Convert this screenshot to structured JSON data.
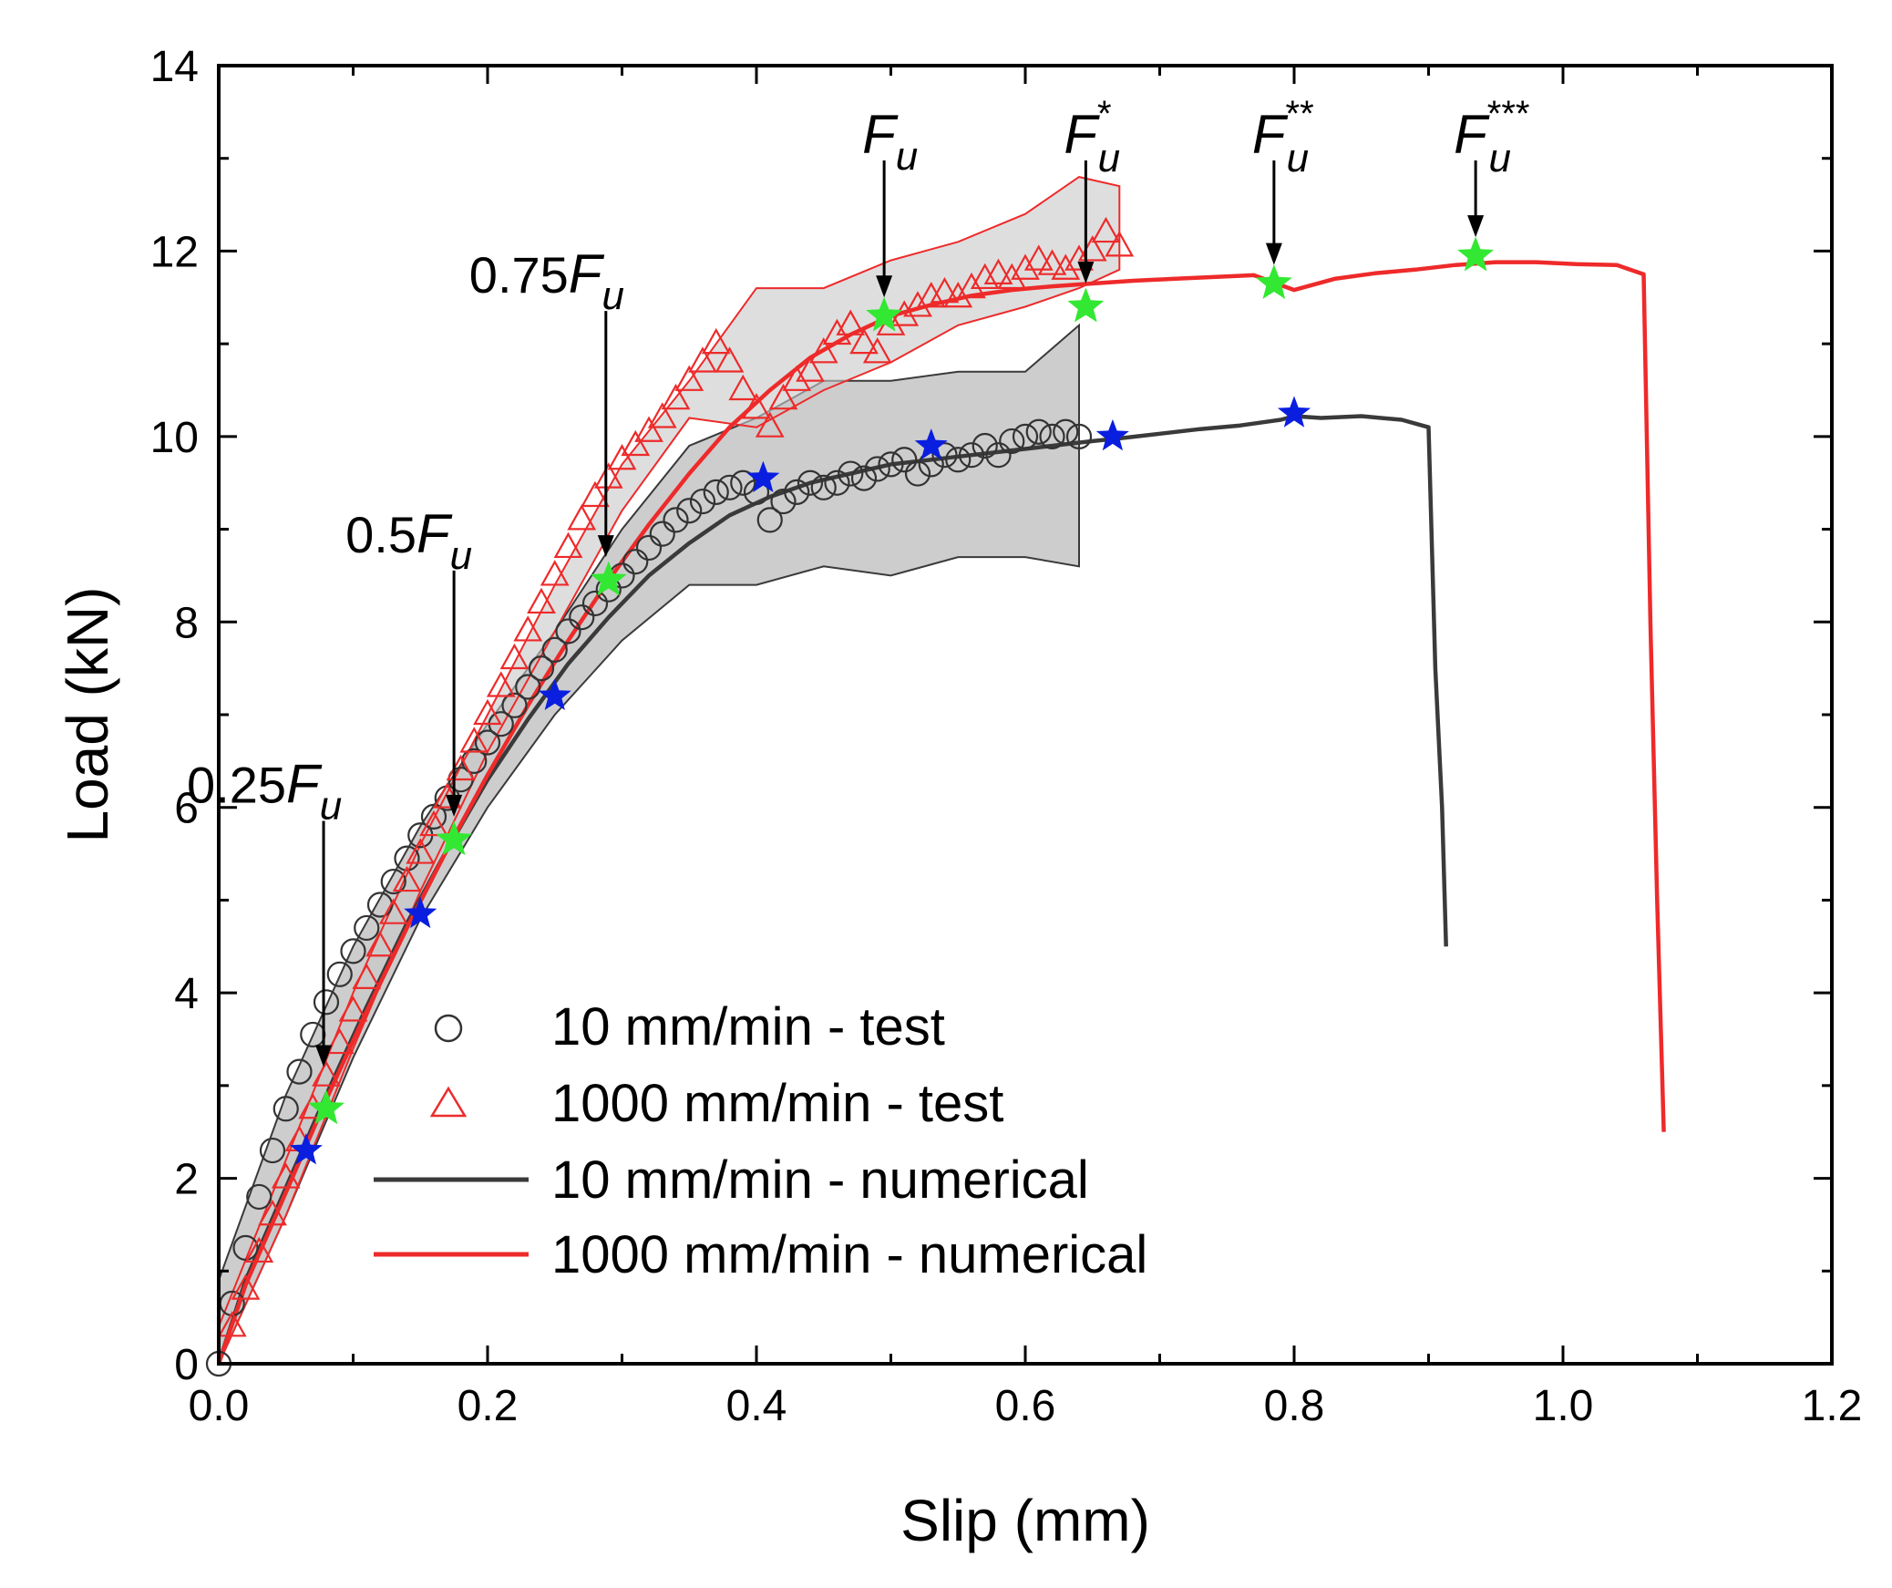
{
  "chart_data": {
    "type": "line",
    "title": "",
    "xlabel": "Slip (mm)",
    "ylabel": "Load (kN)",
    "xlim": [
      0.0,
      1.2
    ],
    "ylim": [
      0,
      14
    ],
    "x_ticks": [
      "0.0",
      "0.2",
      "0.4",
      "0.6",
      "0.8",
      "1.0",
      "1.2"
    ],
    "y_ticks": [
      "0",
      "2",
      "4",
      "6",
      "8",
      "10",
      "12",
      "14"
    ],
    "legend_position": "bottom-left",
    "colors": {
      "black_series": "#3a3a3a",
      "red_series": "#ee2a2a",
      "band_fill": "#c8c8c8",
      "green_star": "#33e833",
      "blue_star": "#0a1ee0"
    },
    "series": [
      {
        "name": "10 mm/min - test",
        "marker": "circle",
        "x": [
          0.0,
          0.01,
          0.02,
          0.03,
          0.04,
          0.05,
          0.06,
          0.07,
          0.08,
          0.09,
          0.1,
          0.11,
          0.12,
          0.13,
          0.14,
          0.15,
          0.16,
          0.17,
          0.18,
          0.19,
          0.2,
          0.21,
          0.22,
          0.23,
          0.24,
          0.25,
          0.26,
          0.27,
          0.28,
          0.29,
          0.3,
          0.31,
          0.32,
          0.33,
          0.34,
          0.35,
          0.36,
          0.37,
          0.38,
          0.39,
          0.4,
          0.41,
          0.42,
          0.43,
          0.44,
          0.45,
          0.46,
          0.47,
          0.48,
          0.49,
          0.5,
          0.51,
          0.52,
          0.53,
          0.54,
          0.55,
          0.56,
          0.57,
          0.58,
          0.59,
          0.6,
          0.61,
          0.62,
          0.63,
          0.64
        ],
        "y": [
          0.0,
          0.65,
          1.25,
          1.8,
          2.3,
          2.75,
          3.15,
          3.55,
          3.9,
          4.2,
          4.45,
          4.7,
          4.95,
          5.2,
          5.45,
          5.7,
          5.9,
          6.1,
          6.3,
          6.5,
          6.7,
          6.9,
          7.1,
          7.3,
          7.5,
          7.7,
          7.9,
          8.05,
          8.2,
          8.35,
          8.5,
          8.65,
          8.8,
          8.95,
          9.1,
          9.2,
          9.3,
          9.4,
          9.45,
          9.5,
          9.4,
          9.1,
          9.3,
          9.4,
          9.5,
          9.45,
          9.5,
          9.6,
          9.55,
          9.65,
          9.7,
          9.75,
          9.6,
          9.7,
          9.8,
          9.75,
          9.8,
          9.9,
          9.8,
          9.95,
          10.0,
          10.05,
          10.0,
          10.05,
          10.0
        ]
      },
      {
        "name": "1000 mm/min - test",
        "marker": "triangle",
        "x": [
          0.01,
          0.02,
          0.03,
          0.04,
          0.05,
          0.06,
          0.07,
          0.08,
          0.09,
          0.1,
          0.11,
          0.12,
          0.13,
          0.14,
          0.15,
          0.16,
          0.17,
          0.18,
          0.19,
          0.2,
          0.21,
          0.22,
          0.23,
          0.24,
          0.25,
          0.26,
          0.27,
          0.28,
          0.29,
          0.3,
          0.31,
          0.32,
          0.33,
          0.34,
          0.35,
          0.36,
          0.37,
          0.38,
          0.39,
          0.4,
          0.41,
          0.42,
          0.43,
          0.44,
          0.45,
          0.46,
          0.47,
          0.48,
          0.49,
          0.5,
          0.51,
          0.52,
          0.53,
          0.54,
          0.55,
          0.56,
          0.57,
          0.58,
          0.59,
          0.6,
          0.61,
          0.62,
          0.63,
          0.64,
          0.65,
          0.66,
          0.67
        ],
        "y": [
          0.4,
          0.8,
          1.2,
          1.6,
          2.0,
          2.4,
          2.75,
          3.1,
          3.45,
          3.8,
          4.15,
          4.5,
          4.85,
          5.2,
          5.5,
          5.8,
          6.1,
          6.4,
          6.7,
          7.0,
          7.3,
          7.6,
          7.9,
          8.2,
          8.5,
          8.8,
          9.1,
          9.35,
          9.55,
          9.75,
          9.9,
          10.05,
          10.2,
          10.4,
          10.6,
          10.8,
          11.0,
          10.8,
          10.5,
          10.3,
          10.1,
          10.4,
          10.6,
          10.7,
          10.9,
          11.1,
          11.2,
          11.0,
          10.9,
          11.2,
          11.3,
          11.4,
          11.5,
          11.55,
          11.5,
          11.6,
          11.7,
          11.75,
          11.7,
          11.8,
          11.9,
          11.85,
          11.8,
          11.9,
          12.0,
          12.2,
          12.05
        ]
      },
      {
        "name": "10 mm/min - numerical",
        "marker": "line",
        "x": [
          0.0,
          0.02,
          0.05,
          0.08,
          0.11,
          0.14,
          0.17,
          0.2,
          0.23,
          0.26,
          0.29,
          0.32,
          0.35,
          0.38,
          0.41,
          0.44,
          0.47,
          0.5,
          0.53,
          0.56,
          0.59,
          0.62,
          0.65,
          0.67,
          0.7,
          0.73,
          0.76,
          0.79,
          0.8,
          0.82,
          0.85,
          0.88,
          0.9,
          0.905,
          0.91,
          0.913
        ],
        "y": [
          0.0,
          0.9,
          1.9,
          2.9,
          3.85,
          4.75,
          5.55,
          6.3,
          6.95,
          7.55,
          8.05,
          8.5,
          8.85,
          9.15,
          9.35,
          9.5,
          9.6,
          9.7,
          9.75,
          9.8,
          9.85,
          9.9,
          9.95,
          9.98,
          10.03,
          10.08,
          10.12,
          10.18,
          10.22,
          10.2,
          10.22,
          10.18,
          10.1,
          7.5,
          6.0,
          4.5
        ]
      },
      {
        "name": "1000 mm/min - numerical",
        "marker": "line",
        "x": [
          0.0,
          0.02,
          0.05,
          0.08,
          0.11,
          0.14,
          0.17,
          0.2,
          0.23,
          0.26,
          0.29,
          0.32,
          0.35,
          0.38,
          0.41,
          0.44,
          0.47,
          0.5,
          0.53,
          0.56,
          0.59,
          0.62,
          0.65,
          0.68,
          0.71,
          0.74,
          0.77,
          0.8,
          0.83,
          0.86,
          0.89,
          0.92,
          0.95,
          0.98,
          1.01,
          1.04,
          1.06,
          1.065,
          1.07,
          1.075
        ],
        "y": [
          0.0,
          0.85,
          1.85,
          2.85,
          3.8,
          4.7,
          5.55,
          6.35,
          7.1,
          7.8,
          8.45,
          9.05,
          9.6,
          10.1,
          10.5,
          10.85,
          11.1,
          11.3,
          11.42,
          11.52,
          11.58,
          11.62,
          11.65,
          11.68,
          11.7,
          11.72,
          11.74,
          11.58,
          11.7,
          11.76,
          11.8,
          11.85,
          11.88,
          11.88,
          11.86,
          11.85,
          11.75,
          8.0,
          5.0,
          2.5
        ]
      }
    ],
    "bands": [
      {
        "name": "10 mm/min - test range",
        "x": [
          0.0,
          0.05,
          0.1,
          0.15,
          0.2,
          0.25,
          0.3,
          0.35,
          0.4,
          0.45,
          0.5,
          0.55,
          0.6,
          0.64
        ],
        "upper": [
          0.9,
          2.9,
          4.5,
          5.8,
          6.9,
          7.9,
          9.0,
          9.9,
          10.2,
          10.6,
          10.6,
          10.7,
          10.7,
          11.2
        ],
        "lower": [
          0.0,
          1.6,
          3.3,
          4.8,
          6.0,
          7.0,
          7.8,
          8.4,
          8.4,
          8.6,
          8.5,
          8.7,
          8.7,
          8.6
        ]
      },
      {
        "name": "1000 mm/min - test range",
        "x": [
          0.0,
          0.05,
          0.1,
          0.15,
          0.2,
          0.25,
          0.3,
          0.35,
          0.4,
          0.45,
          0.5,
          0.55,
          0.6,
          0.64,
          0.67
        ],
        "upper": [
          0.4,
          2.2,
          4.0,
          5.6,
          7.0,
          8.4,
          9.7,
          10.6,
          11.6,
          11.6,
          11.9,
          12.1,
          12.4,
          12.8,
          12.7
        ],
        "lower": [
          0.0,
          1.6,
          3.4,
          5.1,
          6.6,
          7.9,
          9.2,
          10.2,
          10.1,
          10.5,
          10.8,
          11.2,
          11.4,
          11.6,
          11.8
        ]
      }
    ],
    "green_stars": {
      "x": [
        0.08,
        0.175,
        0.29,
        0.495,
        0.645,
        0.785,
        0.935
      ],
      "y": [
        2.75,
        5.65,
        8.45,
        11.3,
        11.4,
        11.65,
        11.95
      ]
    },
    "blue_stars": {
      "x": [
        0.065,
        0.15,
        0.25,
        0.405,
        0.53,
        0.665,
        0.8
      ],
      "y": [
        2.3,
        4.85,
        7.2,
        9.55,
        9.9,
        10.0,
        10.25
      ]
    },
    "annotations": [
      {
        "num": "0.25",
        "f": "F",
        "sub": "u",
        "sup": "",
        "x": 0.078,
        "y": 3.2
      },
      {
        "num": "0.5",
        "f": "F",
        "sub": "u",
        "sup": "",
        "x": 0.175,
        "y": 5.9
      },
      {
        "num": "0.75",
        "f": "F",
        "sub": "u",
        "sup": "",
        "x": 0.288,
        "y": 8.7
      },
      {
        "num": "",
        "f": "F",
        "sub": "u",
        "sup": "",
        "x": 0.495,
        "y": 11.5
      },
      {
        "num": "",
        "f": "F",
        "sub": "u",
        "sup": "*",
        "x": 0.645,
        "y": 11.65
      },
      {
        "num": "",
        "f": "F",
        "sub": "u",
        "sup": "**",
        "x": 0.785,
        "y": 11.85
      },
      {
        "num": "",
        "f": "F",
        "sub": "u",
        "sup": "***",
        "x": 0.935,
        "y": 12.15
      }
    ]
  }
}
